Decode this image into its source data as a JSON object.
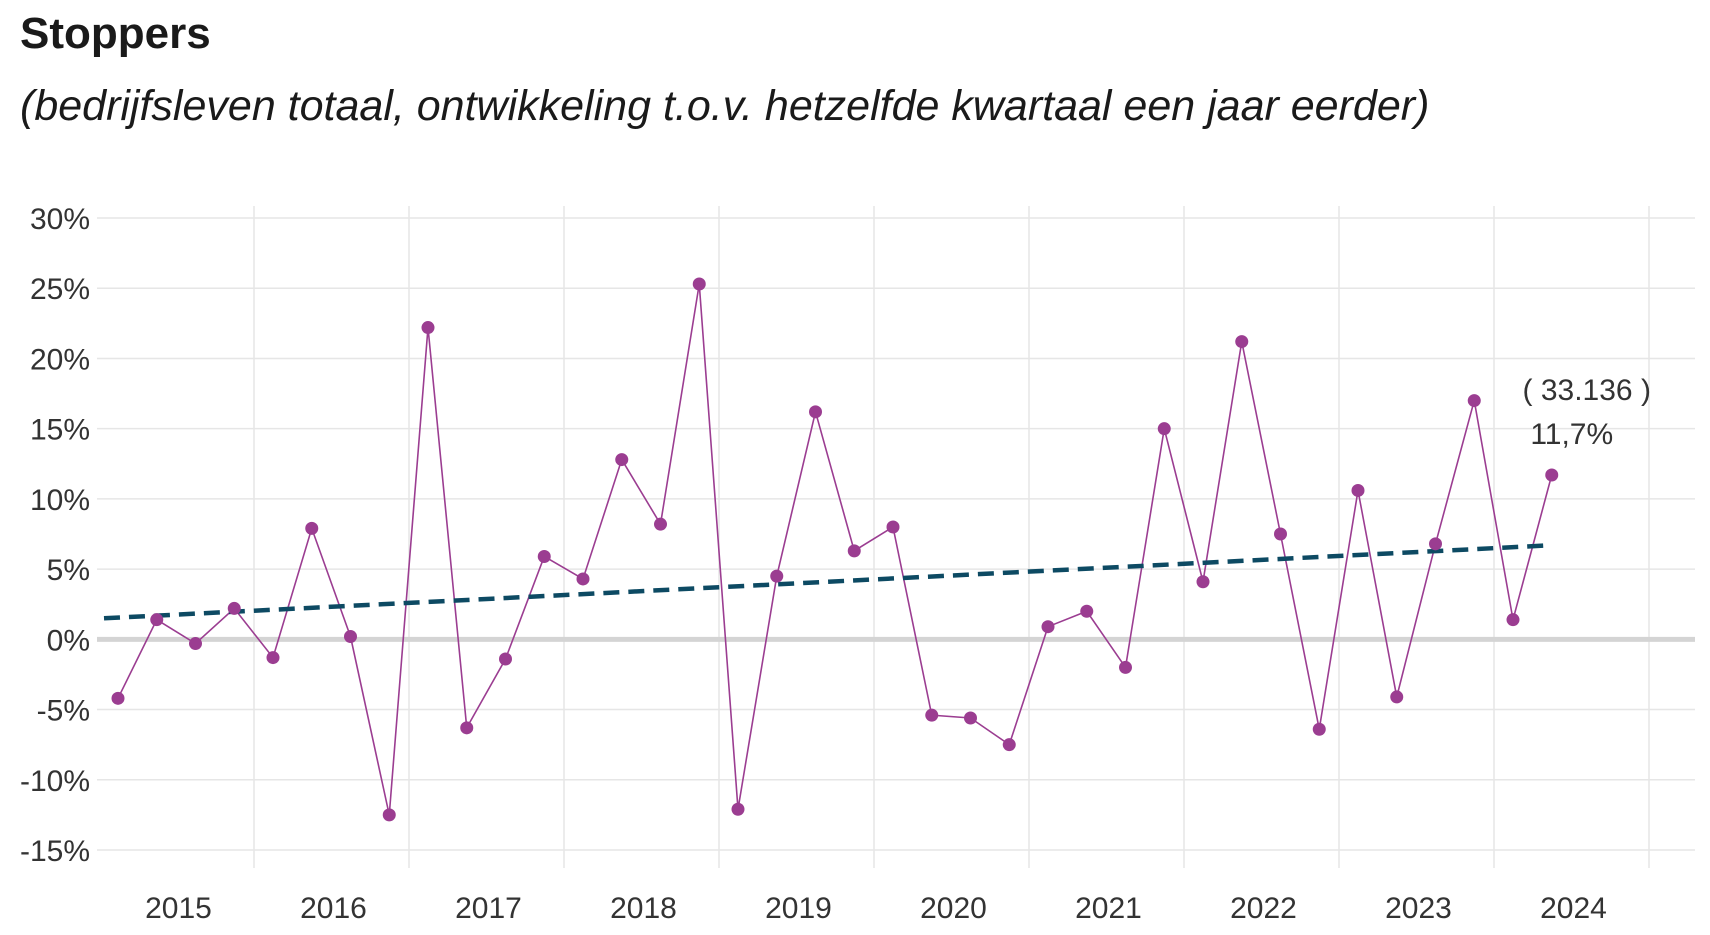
{
  "chart_data": {
    "type": "line",
    "title": "Stoppers",
    "subtitle": "(bedrijfsleven totaal, ontwikkeling t.o.v. hetzelfde kwartaal een jaar eerder)",
    "ylim": [
      -15,
      30
    ],
    "ytick_values": [
      30,
      25,
      20,
      15,
      10,
      5,
      0,
      -5,
      -10,
      -15
    ],
    "ytick_labels": [
      "30%",
      "25%",
      "20%",
      "15%",
      "10%",
      "5%",
      "0%",
      "-5%",
      "-10%",
      "-15%"
    ],
    "xtick_labels": [
      "2015",
      "2016",
      "2017",
      "2018",
      "2019",
      "2020",
      "2021",
      "2022",
      "2023",
      "2024"
    ],
    "grid": true,
    "series": [
      {
        "values": [
          -4.2,
          1.4,
          -0.3,
          2.2,
          -1.3,
          7.9,
          0.2,
          -12.5,
          22.2,
          -6.3,
          -1.4,
          5.9,
          4.3,
          12.8,
          8.2,
          25.3,
          -12.1,
          4.5,
          16.2,
          6.3,
          8.0,
          -5.4,
          -5.6,
          -7.5,
          0.9,
          2.0,
          -2.0,
          15.0,
          4.1,
          21.2,
          7.5,
          -6.4,
          10.6,
          -4.1,
          6.8,
          17.0,
          1.4,
          11.7
        ],
        "color": "#9b3d91"
      },
      {
        "name": "trend",
        "start": 1.5,
        "end": 6.7,
        "color": "#0d4a63",
        "style": "dashed"
      }
    ],
    "annotation": {
      "count": "( 33.136 )",
      "value": "11,7%"
    },
    "colors": {
      "zero_line": "#d4d4d4",
      "grid": "#e6e6e6"
    }
  }
}
